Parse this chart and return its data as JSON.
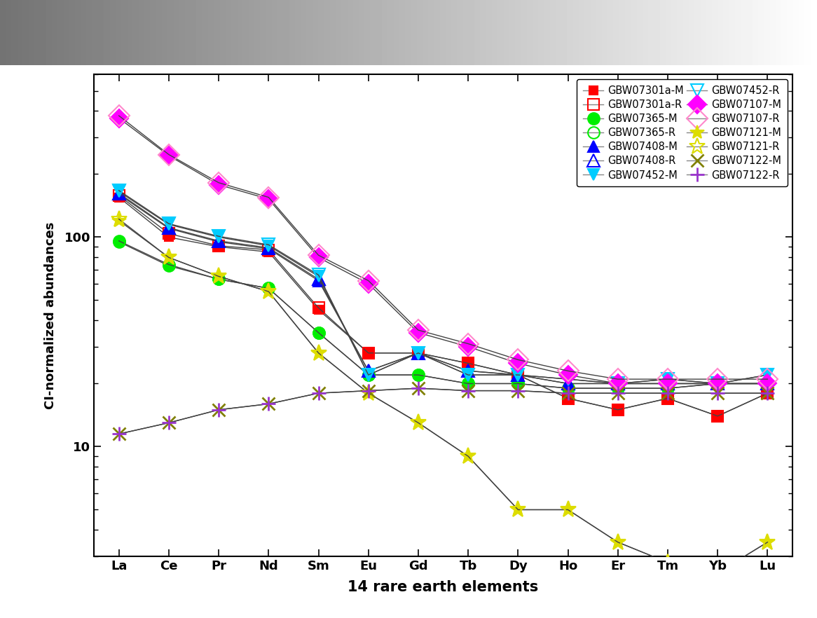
{
  "elements": [
    "La",
    "Ce",
    "Pr",
    "Nd",
    "Sm",
    "Eu",
    "Gd",
    "Tb",
    "Dy",
    "Ho",
    "Er",
    "Tm",
    "Yb",
    "Lu"
  ],
  "series_data": {
    "GBW07301a-M": [
      155,
      100,
      90,
      85,
      45,
      28,
      28,
      25,
      22,
      17,
      15,
      17,
      14,
      18
    ],
    "GBW07301a-R": [
      158,
      104,
      91,
      87,
      46,
      28,
      28,
      25,
      22,
      17,
      15,
      17,
      14,
      18
    ],
    "GBW07365-M": [
      95,
      73,
      63,
      57,
      35,
      22,
      22,
      20,
      20,
      19,
      19,
      19,
      20,
      20
    ],
    "GBW07365-R": [
      96,
      74,
      63,
      57,
      35,
      22,
      22,
      20,
      20,
      19,
      19,
      19,
      20,
      20
    ],
    "GBW07408-M": [
      160,
      110,
      95,
      88,
      62,
      23,
      28,
      23,
      22,
      20,
      20,
      20,
      20,
      20
    ],
    "GBW07408-R": [
      162,
      111,
      96,
      89,
      63,
      23,
      28,
      23,
      22,
      20,
      20,
      20,
      20,
      20
    ],
    "GBW07452-M": [
      165,
      115,
      100,
      91,
      65,
      22,
      28,
      22,
      22,
      21,
      20,
      21,
      20,
      22
    ],
    "GBW07452-R": [
      167,
      116,
      101,
      92,
      66,
      22,
      28,
      22,
      22,
      21,
      20,
      21,
      20,
      22
    ],
    "GBW07107-M": [
      370,
      245,
      178,
      152,
      80,
      60,
      35,
      30,
      25,
      22,
      20,
      20,
      20,
      20
    ],
    "GBW07107-R": [
      380,
      248,
      182,
      155,
      82,
      62,
      36,
      31,
      26,
      23,
      21,
      21,
      21,
      21
    ],
    "GBW07121-M": [
      120,
      80,
      65,
      55,
      28,
      18,
      13,
      9,
      5.0,
      5.0,
      3.5,
      2.8,
      2.5,
      3.5
    ],
    "GBW07121-R": [
      122,
      80,
      65,
      55,
      28,
      18,
      13,
      9,
      5.0,
      5.0,
      3.5,
      2.8,
      2.5,
      3.5
    ],
    "GBW07122-M": [
      11.5,
      13.0,
      15.0,
      16.0,
      18.0,
      18.5,
      19.0,
      18.5,
      18.5,
      18.0,
      18.0,
      18.0,
      18.0,
      18.0
    ],
    "GBW07122-R": [
      11.5,
      13.0,
      15.0,
      16.0,
      18.0,
      18.5,
      19.0,
      18.5,
      18.5,
      18.0,
      18.0,
      18.0,
      18.0,
      18.0
    ]
  },
  "marker_config": {
    "GBW07301a-M": {
      "color": "#ff0000",
      "marker": "s",
      "ms": 9,
      "filled": true,
      "mew": 1.5
    },
    "GBW07301a-R": {
      "color": "#ff0000",
      "marker": "s",
      "ms": 11,
      "filled": false,
      "mew": 1.5
    },
    "GBW07365-M": {
      "color": "#00ee00",
      "marker": "o",
      "ms": 12,
      "filled": true,
      "mew": 1.5
    },
    "GBW07365-R": {
      "color": "#00ee00",
      "marker": "o",
      "ms": 12,
      "filled": false,
      "mew": 1.5
    },
    "GBW07408-M": {
      "color": "#0000ff",
      "marker": "^",
      "ms": 12,
      "filled": true,
      "mew": 1.5
    },
    "GBW07408-R": {
      "color": "#0000ff",
      "marker": "^",
      "ms": 13,
      "filled": false,
      "mew": 1.5
    },
    "GBW07452-M": {
      "color": "#00ccff",
      "marker": "v",
      "ms": 12,
      "filled": true,
      "mew": 1.5
    },
    "GBW07452-R": {
      "color": "#00ccff",
      "marker": "v",
      "ms": 13,
      "filled": false,
      "mew": 1.5
    },
    "GBW07107-M": {
      "color": "#ff00ff",
      "marker": "D",
      "ms": 13,
      "filled": true,
      "mew": 1.5
    },
    "GBW07107-R": {
      "color": "#ff88cc",
      "marker": "D",
      "ms": 15,
      "filled": false,
      "mew": 1.5
    },
    "GBW07121-M": {
      "color": "#dddd00",
      "marker": "*",
      "ms": 15,
      "filled": true,
      "mew": 1.5
    },
    "GBW07121-R": {
      "color": "#dddd00",
      "marker": "*",
      "ms": 17,
      "filled": false,
      "mew": 1.5
    },
    "GBW07122-M": {
      "color": "#808000",
      "marker": "x",
      "ms": 13,
      "filled": true,
      "mew": 2.0
    },
    "GBW07122-R": {
      "color": "#9933cc",
      "marker": "+",
      "ms": 14,
      "filled": false,
      "mew": 2.0
    }
  },
  "legend_order": [
    "GBW07301a-M",
    "GBW07301a-R",
    "GBW07365-M",
    "GBW07365-R",
    "GBW07408-M",
    "GBW07408-R",
    "GBW07452-M",
    "GBW07452-R",
    "GBW07107-M",
    "GBW07107-R",
    "GBW07121-M",
    "GBW07121-R",
    "GBW07122-M",
    "GBW07122-R"
  ],
  "ylabel": "CI-normalized abundances",
  "xlabel": "14 rare earth elements",
  "background_color": "#ffffff",
  "line_color": "#444444",
  "line_width": 1.0
}
